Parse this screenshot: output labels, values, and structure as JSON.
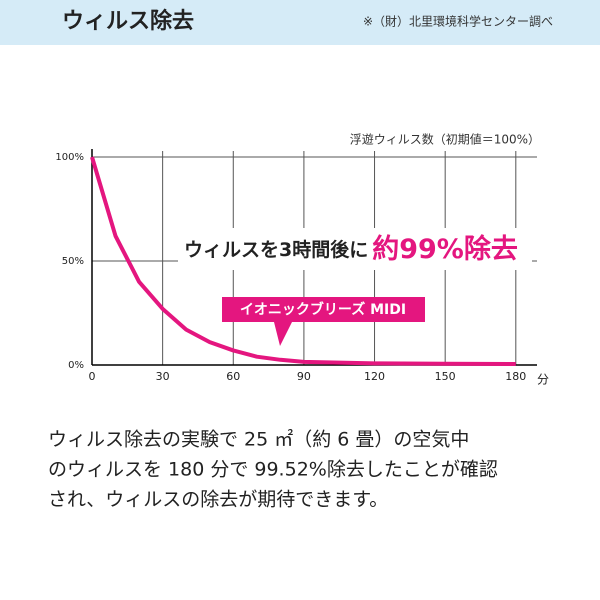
{
  "header": {
    "title": "ウィルス除去",
    "note": "※（財）北里環境科学センター調べ"
  },
  "chart_data": {
    "type": "line",
    "y_axis_label": "浮遊ウィルス数（初期値＝100%）",
    "x_unit": "分",
    "x": [
      0,
      10,
      20,
      30,
      40,
      50,
      60,
      70,
      80,
      90,
      120,
      150,
      180
    ],
    "series": [
      {
        "name": "イオニックブリーズ MIDI",
        "color": "#e4167f",
        "values": [
          100,
          62,
          40,
          27,
          17,
          11,
          7,
          4,
          2.5,
          1.5,
          0.8,
          0.6,
          0.48
        ]
      }
    ],
    "xlim": [
      0,
      189
    ],
    "xticks": [
      0,
      30,
      60,
      90,
      120,
      150,
      180
    ],
    "ylim": [
      0,
      100
    ],
    "yticks": [
      {
        "value": 0,
        "label": "0%"
      },
      {
        "value": 50,
        "label": "50%"
      },
      {
        "value": 100,
        "label": "100%"
      }
    ],
    "grid": true,
    "annotation": {
      "lead": "ウィルスを3時間後に",
      "highlight": "約99%除去"
    }
  },
  "description": [
    "ウィルス除去の実験で 25 ㎡（約 6 畳）の空気中",
    "のウィルスを 180 分で 99.52%除去したことが確認",
    "され、ウィルスの除去が期待できます。"
  ]
}
